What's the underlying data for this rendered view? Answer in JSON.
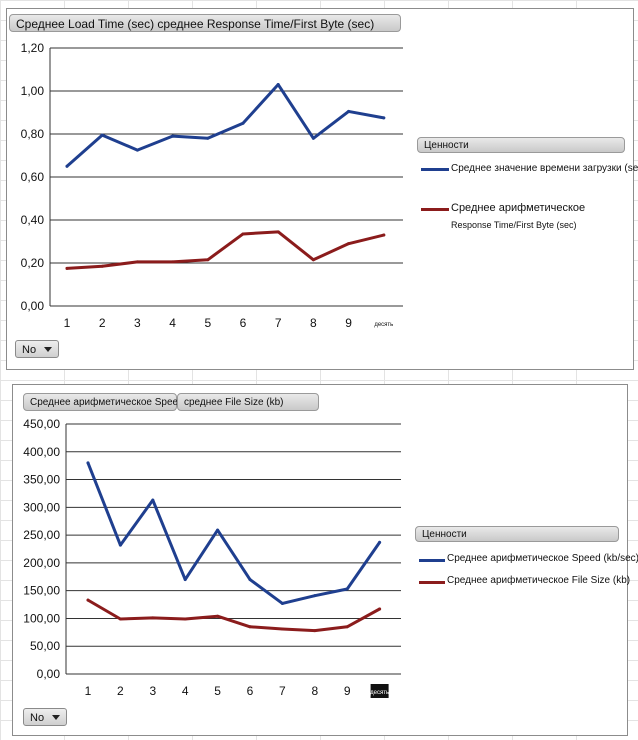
{
  "chart_data": [
    {
      "type": "line",
      "title": "Среднее Load Time (sec) среднее Response Time/First Byte (sec)",
      "categories": [
        "1",
        "2",
        "3",
        "4",
        "5",
        "6",
        "7",
        "8",
        "9",
        "десять"
      ],
      "ylim": [
        0,
        1.2
      ],
      "yticks": [
        "0,00",
        "0,20",
        "0,40",
        "0,60",
        "0,80",
        "1,00",
        "1,20"
      ],
      "grid": true,
      "legend_position": "right",
      "legend_header": "Ценности",
      "series": [
        {
          "name": "Среднее значение времени загрузки (sec)",
          "color": "#1f3f8f",
          "values": [
            0.65,
            0.795,
            0.725,
            0.79,
            0.78,
            0.85,
            1.03,
            0.78,
            0.905,
            0.875
          ]
        },
        {
          "name": "Среднее арифметическое",
          "name_line2": "Response Time/First Byte (sec)",
          "color": "#8b1c1c",
          "values": [
            0.175,
            0.185,
            0.205,
            0.205,
            0.215,
            0.335,
            0.345,
            0.215,
            0.29,
            0.33
          ]
        }
      ],
      "filter": "No"
    },
    {
      "type": "line",
      "title_parts": [
        "Среднее арифметическое Speed (kb/sec)",
        "среднее File Size (kb)"
      ],
      "categories": [
        "1",
        "2",
        "3",
        "4",
        "5",
        "6",
        "7",
        "8",
        "9",
        "десять"
      ],
      "ylim": [
        0,
        450
      ],
      "yticks": [
        "0,00",
        "50,00",
        "100,00",
        "150,00",
        "200,00",
        "250,00",
        "300,00",
        "350,00",
        "400,00",
        "450,00"
      ],
      "grid": true,
      "legend_position": "right",
      "legend_header": "Ценности",
      "series": [
        {
          "name": "Среднее арифметическое Speed (kb/sec)",
          "color": "#1f3f8f",
          "values": [
            380,
            232,
            313,
            170,
            259,
            170,
            127,
            141,
            153,
            237
          ]
        },
        {
          "name": "Среднее арифметическое File Size (kb)",
          "color": "#8b1c1c",
          "values": [
            133,
            99,
            101,
            99,
            104,
            85,
            81,
            78,
            85,
            117
          ]
        }
      ],
      "filter": "No"
    }
  ]
}
